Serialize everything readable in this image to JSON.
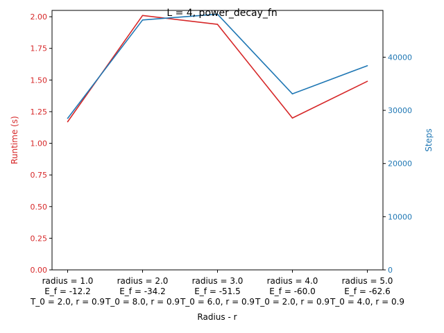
{
  "chart_data": {
    "type": "line",
    "title": "L = 4, power_decay_fn",
    "xlabel": "Radius - r",
    "categories": [
      [
        "radius = 1.0",
        "E_f = -12.2",
        "T_0 = 2.0, r = 0.9"
      ],
      [
        "radius = 2.0",
        "E_f = -34.2",
        "T_0 = 8.0, r = 0.9"
      ],
      [
        "radius = 3.0",
        "E_f = -51.5",
        "T_0 = 6.0, r = 0.9"
      ],
      [
        "radius = 4.0",
        "E_f = -60.0",
        "T_0 = 2.0, r = 0.9"
      ],
      [
        "radius = 5.0",
        "E_f = -62.6",
        "T_0 = 4.0, r = 0.9"
      ]
    ],
    "left_axis": {
      "label": "Runtime (s)",
      "color": "#d62728",
      "ylim": [
        0,
        2.05
      ],
      "ticks": [
        "0.00",
        "0.25",
        "0.50",
        "0.75",
        "1.00",
        "1.25",
        "1.50",
        "1.75",
        "2.00"
      ],
      "tick_values": [
        0,
        0.25,
        0.5,
        0.75,
        1.0,
        1.25,
        1.5,
        1.75,
        2.0
      ]
    },
    "right_axis": {
      "label": "Steps",
      "color": "#1f77b4",
      "ylim": [
        0,
        48800
      ],
      "ticks": [
        "0",
        "10000",
        "20000",
        "30000",
        "40000"
      ],
      "tick_values": [
        0,
        10000,
        20000,
        30000,
        40000
      ]
    },
    "series": [
      {
        "axis": "left",
        "color": "#d62728",
        "values": [
          1.17,
          2.01,
          1.94,
          1.2,
          1.49
        ]
      },
      {
        "axis": "right",
        "color": "#1f77b4",
        "values": [
          28500,
          47000,
          48100,
          33100,
          38400
        ]
      }
    ],
    "grid": false,
    "legend": "none"
  }
}
